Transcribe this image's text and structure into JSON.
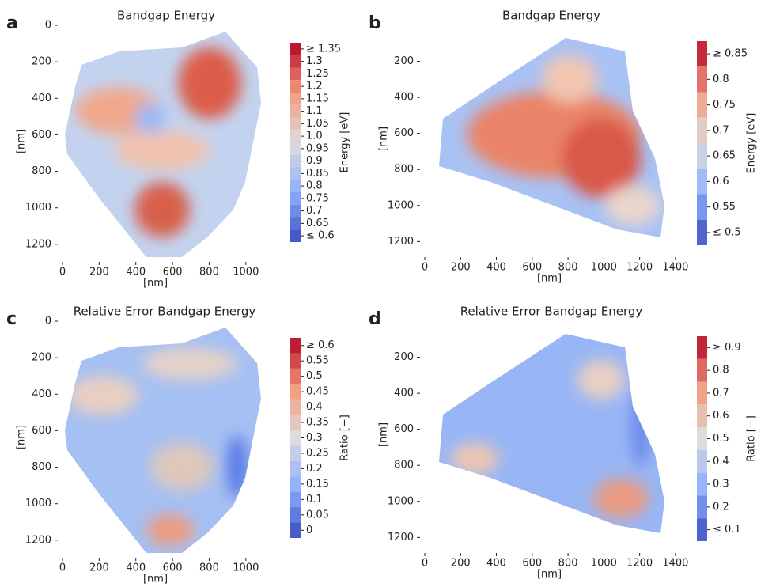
{
  "chart_data": [
    {
      "type": "heatmap",
      "panel_label": "a",
      "title": "Bandgap Energy",
      "x_label": "[nm]",
      "y_label": "[nm]",
      "xlim": [
        0,
        1100
      ],
      "ylim": [
        0,
        1270
      ],
      "xticks": [
        0,
        200,
        400,
        600,
        800,
        1000
      ],
      "yticks": [
        0,
        200,
        400,
        600,
        800,
        1000,
        1200
      ],
      "colormap": [
        "#3b4cc0",
        "#8db0fe",
        "#dddcdc",
        "#f49a7b",
        "#b40426"
      ],
      "colorbar": {
        "label": "Energy [eV]",
        "clim": [
          0.575,
          1.375
        ],
        "ticks": [
          {
            "value": 1.35,
            "label": "≥ 1.35"
          },
          1.3,
          1.25,
          1.2,
          1.15,
          1.1,
          1.05,
          {
            "value": 1,
            "label": "1.0"
          },
          0.95,
          0.9,
          0.85,
          0.8,
          0.75,
          0.7,
          0.65,
          {
            "value": 0.6,
            "label": "≤ 0.6"
          }
        ]
      }
    },
    {
      "type": "heatmap",
      "panel_label": "b",
      "title": "Bandgap Energy",
      "x_label": "[nm]",
      "y_label": "[nm]",
      "xlim": [
        0,
        1480
      ],
      "ylim": [
        0,
        1260
      ],
      "xticks": [
        0,
        200,
        400,
        600,
        800,
        1000,
        1200,
        1400
      ],
      "yticks": [
        200,
        400,
        600,
        800,
        1000,
        1200
      ],
      "colormap": [
        "#3b4cc0",
        "#8db0fe",
        "#dddcdc",
        "#f49a7b",
        "#b40426"
      ],
      "colorbar": {
        "label": "Energy [eV]",
        "clim": [
          0.475,
          0.875
        ],
        "ticks": [
          {
            "value": 0.85,
            "label": "≥ 0.85"
          },
          0.8,
          0.75,
          0.7,
          0.65,
          0.6,
          0.55,
          {
            "value": 0.5,
            "label": "≤ 0.5"
          }
        ]
      }
    },
    {
      "type": "heatmap",
      "panel_label": "c",
      "title": "Relative Error Bandgap Energy",
      "x_label": "[nm]",
      "y_label": "[nm]",
      "xlim": [
        0,
        1100
      ],
      "ylim": [
        0,
        1270
      ],
      "xticks": [
        0,
        200,
        400,
        600,
        800,
        1000
      ],
      "yticks": [
        0,
        200,
        400,
        600,
        800,
        1000,
        1200
      ],
      "colormap": [
        "#3b4cc0",
        "#8db0fe",
        "#dddcdc",
        "#f49a7b",
        "#b40426"
      ],
      "colorbar": {
        "label": "Ratio [−]",
        "clim": [
          -0.025,
          0.625
        ],
        "ticks": [
          {
            "value": 0.6,
            "label": "≥ 0.6"
          },
          0.55,
          0.5,
          0.45,
          0.4,
          0.35,
          0.3,
          0.25,
          0.2,
          0.15,
          0.1,
          0.05,
          0
        ]
      }
    },
    {
      "type": "heatmap",
      "panel_label": "d",
      "title": "Relative Error Bandgap Energy",
      "x_label": "[nm]",
      "y_label": "[nm]",
      "xlim": [
        0,
        1480
      ],
      "ylim": [
        0,
        1260
      ],
      "xticks": [
        0,
        200,
        400,
        600,
        800,
        1000,
        1200,
        1400
      ],
      "yticks": [
        200,
        400,
        600,
        800,
        1000,
        1200
      ],
      "colormap": [
        "#3b4cc0",
        "#8db0fe",
        "#dddcdc",
        "#f49a7b",
        "#b40426"
      ],
      "colorbar": {
        "label": "Ratio [−]",
        "clim": [
          0.05,
          0.95
        ],
        "ticks": [
          {
            "value": 0.9,
            "label": "≥ 0.9"
          },
          0.8,
          0.7,
          0.6,
          0.5,
          0.4,
          0.3,
          0.2,
          {
            "value": 0.1,
            "label": "≤ 0.1"
          }
        ]
      }
    }
  ]
}
